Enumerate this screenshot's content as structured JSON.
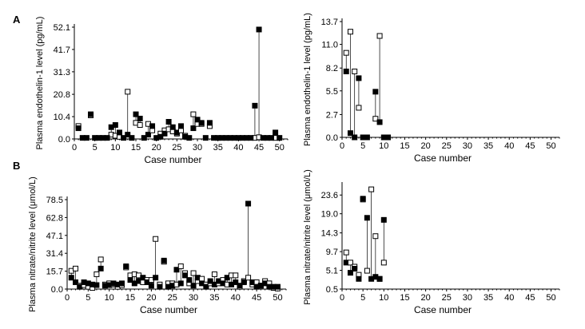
{
  "panel_labels": [
    "A",
    "B"
  ],
  "chart_data": [
    {
      "type": "scatter",
      "panel": "A",
      "xlabel": "Case number",
      "ylabel": "Plasma endothelin-1 level (pg/mL)",
      "xlim": [
        0,
        52
      ],
      "ylim": [
        0,
        52.1
      ],
      "xticks": [
        0,
        5,
        10,
        15,
        20,
        25,
        30,
        35,
        40,
        45,
        50
      ],
      "yticks": [
        "0.0",
        "10.4",
        "20.8",
        "31.3",
        "41.7",
        "52.1"
      ],
      "pairs": [
        [
          1,
          5.0,
          6.0
        ],
        [
          4,
          11.5,
          11.0
        ],
        [
          9,
          5.5,
          2.0
        ],
        [
          10,
          6.5,
          1.5
        ],
        [
          11,
          3.0,
          1.0
        ],
        [
          13,
          2.0,
          22.0
        ],
        [
          15,
          11.5,
          7.5
        ],
        [
          16,
          9.5,
          6.5
        ],
        [
          18,
          2.0,
          7.0
        ],
        [
          19,
          6.0,
          4.0
        ],
        [
          21,
          1.0,
          2.5
        ],
        [
          22,
          2.5,
          4.0
        ],
        [
          23,
          8.0,
          4.5
        ],
        [
          24,
          5.5,
          3.5
        ],
        [
          25,
          3.0,
          2.5
        ],
        [
          26,
          6.0,
          4.0
        ],
        [
          27,
          1.0,
          1.5
        ],
        [
          29,
          5.0,
          11.5
        ],
        [
          30,
          9.0,
          7.0
        ],
        [
          31,
          7.5,
          7.0
        ],
        [
          33,
          7.5,
          6.0
        ],
        [
          44,
          15.5,
          0.5
        ],
        [
          45,
          51.0,
          0.8
        ],
        [
          49,
          3.0,
          0.5
        ]
      ],
      "zero_cases": [
        2,
        3,
        5,
        6,
        7,
        8,
        12,
        14,
        17,
        20,
        28,
        32,
        34,
        35,
        36,
        37,
        38,
        39,
        40,
        41,
        42,
        43,
        46,
        47,
        48,
        50
      ],
      "zero_value": 0.5
    },
    {
      "type": "scatter",
      "panel": "A",
      "xlabel": "Case number",
      "ylabel": "Plasma endothelin-1 level (pg/mL)",
      "xlim": [
        0,
        52
      ],
      "ylim": [
        0,
        13.7
      ],
      "xticks": [
        0,
        5,
        10,
        15,
        20,
        25,
        30,
        35,
        40,
        45,
        50
      ],
      "yticks": [
        "0.0",
        "2.7",
        "5.5",
        "8.2",
        "11.0",
        "13.7"
      ],
      "pairs": [
        [
          1,
          7.8,
          10.0
        ],
        [
          2,
          0.5,
          12.5
        ],
        [
          3,
          0.0,
          7.8
        ],
        [
          4,
          7.0,
          3.5
        ],
        [
          8,
          5.4,
          2.2
        ],
        [
          9,
          1.8,
          12.0
        ]
      ],
      "zero_cases": [
        5,
        6,
        10,
        11
      ],
      "zero_value": 0.0
    },
    {
      "type": "scatter",
      "panel": "B",
      "xlabel": "Case number",
      "ylabel": "Plasma nitrate/nitrite level (μmol/L)",
      "xlim": [
        0,
        52
      ],
      "ylim": [
        0,
        78.5
      ],
      "xticks": [
        0,
        5,
        10,
        15,
        20,
        25,
        30,
        35,
        40,
        45,
        50
      ],
      "yticks": [
        "0.0",
        "15.7",
        "31.4",
        "47.1",
        "62.8",
        "78.5"
      ],
      "pairs": [
        [
          1,
          10.0,
          16.0
        ],
        [
          2,
          6.0,
          18.0
        ],
        [
          3,
          2.0,
          3.0
        ],
        [
          4,
          6.0,
          3.5
        ],
        [
          5,
          5.0,
          2.0
        ],
        [
          6,
          4.0,
          1.0
        ],
        [
          7,
          3.5,
          13.0
        ],
        [
          8,
          18.0,
          26.0
        ],
        [
          9,
          3.0,
          4.0
        ],
        [
          10,
          3.5,
          5.0
        ],
        [
          11,
          5.0,
          4.0
        ],
        [
          12,
          4.0,
          2.0
        ],
        [
          13,
          5.0,
          3.5
        ],
        [
          14,
          20.0,
          19.0
        ],
        [
          15,
          8.0,
          12.0
        ],
        [
          16,
          5.0,
          13.0
        ],
        [
          17,
          7.0,
          12.0
        ],
        [
          18,
          10.0,
          6.0
        ],
        [
          19,
          6.0,
          8.0
        ],
        [
          20,
          3.0,
          8.0
        ],
        [
          21,
          10.0,
          44.0
        ],
        [
          22,
          2.0,
          4.0
        ],
        [
          23,
          25.0,
          24.0
        ],
        [
          24,
          2.0,
          5.0
        ],
        [
          25,
          3.0,
          5.0
        ],
        [
          26,
          17.0,
          4.0
        ],
        [
          27,
          5.0,
          20.0
        ],
        [
          28,
          12.0,
          14.0
        ],
        [
          29,
          8.0,
          5.0
        ],
        [
          30,
          3.0,
          14.0
        ],
        [
          31,
          10.0,
          7.0
        ],
        [
          32,
          5.0,
          9.0
        ],
        [
          33,
          2.0,
          4.0
        ],
        [
          34,
          7.0,
          5.0
        ],
        [
          35,
          4.0,
          13.0
        ],
        [
          36,
          7.0,
          5.0
        ],
        [
          37,
          5.0,
          8.0
        ],
        [
          38,
          10.0,
          4.0
        ],
        [
          39,
          4.0,
          12.0
        ],
        [
          40,
          6.0,
          12.0
        ],
        [
          41,
          3.0,
          2.0
        ],
        [
          42,
          6.0,
          7.0
        ],
        [
          43,
          75.0,
          10.0
        ],
        [
          44,
          6.0,
          4.0
        ],
        [
          45,
          2.0,
          6.0
        ],
        [
          46,
          3.0,
          3.0
        ],
        [
          47,
          5.0,
          7.0
        ],
        [
          48,
          2.0,
          5.0
        ],
        [
          49,
          2.0,
          1.0
        ],
        [
          50,
          2.0,
          0.5
        ]
      ]
    },
    {
      "type": "scatter",
      "panel": "B",
      "xlabel": "Case number",
      "ylabel": "Plasma nitrate/nitrite level (μmol/L)",
      "xlim": [
        0,
        52
      ],
      "ylim": [
        0.5,
        26.0
      ],
      "xticks": [
        0,
        5,
        10,
        15,
        20,
        25,
        30,
        35,
        40,
        45,
        50
      ],
      "yticks": [
        "0.5",
        "5.1",
        "9.7",
        "14.3",
        "19.0",
        "23.6"
      ],
      "pairs": [
        [
          1,
          7.0,
          9.5
        ],
        [
          2,
          4.5,
          7.0
        ],
        [
          3,
          5.5,
          6.0
        ],
        [
          4,
          3.0,
          4.0
        ],
        [
          5,
          22.7,
          22.5
        ],
        [
          6,
          18.0,
          5.0
        ],
        [
          7,
          3.0,
          25.0
        ],
        [
          8,
          3.5,
          13.5
        ],
        [
          9,
          3.0,
          3.0
        ],
        [
          10,
          17.5,
          7.0
        ]
      ]
    }
  ]
}
